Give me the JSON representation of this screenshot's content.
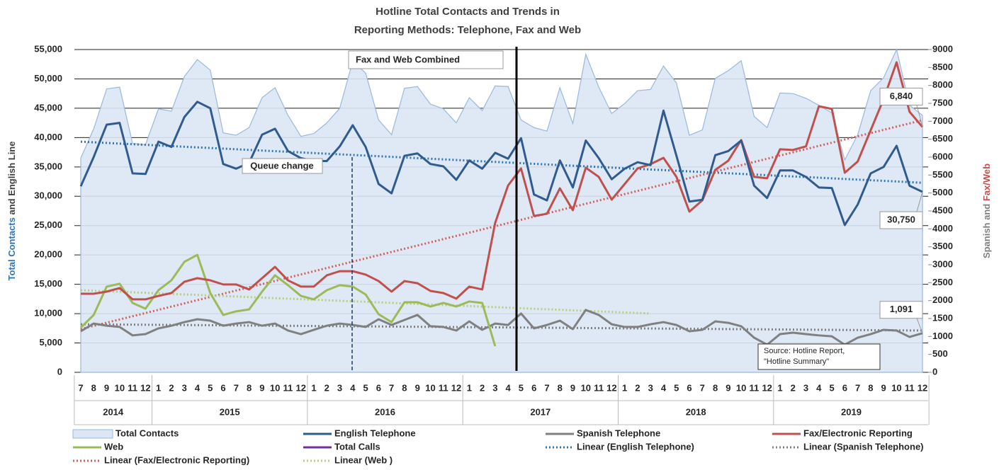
{
  "chart_data": {
    "type": "line",
    "title": [
      "Hotline Total Contacts and Trends in",
      "Reporting Methods: Telephone, Fax and Web"
    ],
    "ylabel": [
      "Total Contacts",
      " and English Line"
    ],
    "y2label": [
      "Spanish and ",
      "Fax/Web"
    ],
    "categories": [
      "7",
      "8",
      "9",
      "10",
      "11",
      "12",
      "1",
      "2",
      "3",
      "4",
      "5",
      "6",
      "7",
      "8",
      "9",
      "10",
      "11",
      "12",
      "1",
      "2",
      "3",
      "4",
      "5",
      "6",
      "7",
      "8",
      "9",
      "10",
      "11",
      "12",
      "1",
      "2",
      "3",
      "4",
      "5",
      "6",
      "7",
      "8",
      "9",
      "10",
      "11",
      "12",
      "1",
      "2",
      "3",
      "4",
      "5",
      "6",
      "7",
      "8",
      "9",
      "10",
      "11",
      "12",
      "1",
      "2",
      "3",
      "4",
      "5",
      "6",
      "7",
      "8",
      "9",
      "10",
      "11",
      "12"
    ],
    "year_groups": [
      {
        "label": "2014",
        "months": 6
      },
      {
        "label": "2015",
        "months": 12
      },
      {
        "label": "2016",
        "months": 12
      },
      {
        "label": "2017",
        "months": 12
      },
      {
        "label": "2018",
        "months": 12
      },
      {
        "label": "2019",
        "months": 12
      }
    ],
    "ylim": [
      0,
      55000
    ],
    "yticks": [
      0,
      {
        "value": 5000,
        "label": "5,000"
      },
      {
        "value": 10000,
        "label": "10,000"
      },
      {
        "value": 15000,
        "label": "15,000"
      },
      {
        "value": 20000,
        "label": "20,000"
      },
      {
        "value": 25000,
        "label": "25,000"
      },
      {
        "value": 30000,
        "label": "30,000"
      },
      {
        "value": 35000,
        "label": "35,000"
      },
      {
        "value": 40000,
        "label": "40,000"
      },
      {
        "value": 45000,
        "label": "45,000"
      },
      {
        "value": 50000,
        "label": "50,000"
      },
      {
        "value": 55000,
        "label": "55,000"
      }
    ],
    "y2lim": [
      0,
      9000
    ],
    "y2ticks": [
      0,
      500,
      1000,
      1500,
      2000,
      2500,
      3000,
      3500,
      4000,
      4500,
      5000,
      5500,
      6000,
      6500,
      7000,
      7500,
      8000,
      8500,
      9000
    ],
    "grid": true,
    "series": [
      {
        "name": "Total Contacts",
        "kind": "area",
        "color": "#dce6f4",
        "values": [
          36500,
          41500,
          48300,
          48600,
          39000,
          38800,
          44900,
          44500,
          50400,
          53300,
          51500,
          40800,
          40400,
          41700,
          46800,
          48500,
          43800,
          40200,
          40700,
          42500,
          45000,
          53000,
          51000,
          43000,
          40500,
          48400,
          48700,
          45700,
          44900,
          42500,
          46800,
          44600,
          48800,
          48700,
          43000,
          41700,
          41100,
          48500,
          42400,
          54200,
          48600,
          44100,
          45800,
          48000,
          48200,
          52200,
          49300,
          40400,
          41300,
          50100,
          51400,
          53100,
          43600,
          41700,
          47600,
          47500,
          46700,
          45500,
          44200,
          36200,
          40500,
          48000,
          50200,
          55000,
          45500,
          43800
        ]
      },
      {
        "name": "English Telephone",
        "kind": "line",
        "color": "#2f5b8e",
        "values": [
          31700,
          36700,
          42200,
          42500,
          33900,
          33800,
          39300,
          38400,
          43500,
          46100,
          45000,
          35500,
          34700,
          35700,
          40500,
          41500,
          37700,
          36500,
          36000,
          36000,
          38500,
          42100,
          38400,
          32100,
          30500,
          36900,
          37300,
          35500,
          35100,
          32800,
          36100,
          34700,
          37400,
          36400,
          39900,
          30300,
          29300,
          36100,
          31500,
          39500,
          36500,
          32900,
          34700,
          35800,
          35300,
          44600,
          36900,
          29100,
          29400,
          37000,
          37700,
          39500,
          31800,
          29700,
          34400,
          34400,
          33300,
          31500,
          31400,
          25100,
          28600,
          33900,
          35000,
          38600,
          31800,
          30750
        ],
        "value_labels": [
          null,
          null,
          null,
          null,
          null,
          null,
          null,
          null,
          null,
          null,
          null,
          null,
          null,
          null,
          null,
          null,
          null,
          null,
          null,
          null,
          null,
          null,
          null,
          null,
          null,
          null,
          null,
          null,
          null,
          null,
          null,
          null,
          null,
          null,
          null,
          null,
          null,
          null,
          null,
          null,
          null,
          null,
          null,
          null,
          null,
          null,
          null,
          null,
          null,
          null,
          null,
          null,
          null,
          null,
          null,
          null,
          null,
          null,
          null,
          null,
          null,
          null,
          null,
          null,
          null,
          "30,750"
        ]
      },
      {
        "name": "Spanish Telephone",
        "kind": "line",
        "axis": "y2",
        "color": "#808080",
        "values": [
          1145,
          1360,
          1300,
          1265,
          1030,
          1065,
          1225,
          1300,
          1400,
          1480,
          1440,
          1300,
          1360,
          1400,
          1300,
          1360,
          1165,
          1065,
          1185,
          1300,
          1360,
          1320,
          1265,
          1480,
          1320,
          1460,
          1600,
          1285,
          1265,
          1165,
          1420,
          1185,
          1360,
          1320,
          1640,
          1225,
          1320,
          1440,
          1205,
          1740,
          1600,
          1340,
          1265,
          1265,
          1340,
          1400,
          1320,
          1145,
          1185,
          1420,
          1380,
          1285,
          965,
          770,
          1065,
          1105,
          1065,
          1030,
          1005,
          770,
          965,
          1065,
          1185,
          1165,
          985,
          1091
        ],
        "value_labels": [
          null,
          null,
          null,
          null,
          null,
          null,
          null,
          null,
          null,
          null,
          null,
          null,
          null,
          null,
          null,
          null,
          null,
          null,
          null,
          null,
          null,
          null,
          null,
          null,
          null,
          null,
          null,
          null,
          null,
          null,
          null,
          null,
          null,
          null,
          null,
          null,
          null,
          null,
          null,
          null,
          null,
          null,
          null,
          null,
          null,
          null,
          null,
          null,
          null,
          null,
          null,
          null,
          null,
          null,
          null,
          null,
          null,
          null,
          null,
          null,
          null,
          null,
          null,
          null,
          null,
          "1,091"
        ]
      },
      {
        "name": "Fax/Electronic Reporting",
        "kind": "line",
        "axis": "y2",
        "color": "#c0504d",
        "values": [
          2190,
          2190,
          2250,
          2350,
          2035,
          2035,
          2130,
          2210,
          2525,
          2625,
          2565,
          2450,
          2450,
          2310,
          2625,
          2940,
          2565,
          2390,
          2390,
          2705,
          2820,
          2820,
          2725,
          2545,
          2250,
          2545,
          2485,
          2270,
          2210,
          2055,
          2390,
          2310,
          4165,
          5210,
          5685,
          4360,
          4420,
          5130,
          4520,
          5705,
          5450,
          4815,
          5250,
          5685,
          5805,
          5980,
          5450,
          4480,
          4795,
          5645,
          5900,
          6475,
          5450,
          5410,
          6220,
          6200,
          6300,
          7420,
          7345,
          5565,
          5880,
          6750,
          7620,
          8645,
          7265,
          6840
        ],
        "value_labels": [
          null,
          null,
          null,
          null,
          null,
          null,
          null,
          null,
          null,
          null,
          null,
          null,
          null,
          null,
          null,
          null,
          null,
          null,
          null,
          null,
          null,
          null,
          null,
          null,
          null,
          null,
          null,
          null,
          null,
          null,
          null,
          null,
          null,
          null,
          null,
          null,
          null,
          null,
          null,
          null,
          null,
          null,
          null,
          null,
          null,
          null,
          null,
          null,
          null,
          null,
          null,
          null,
          null,
          null,
          null,
          null,
          null,
          null,
          null,
          null,
          null,
          null,
          null,
          null,
          null,
          "6,840"
        ]
      },
      {
        "name": "Web",
        "kind": "line",
        "axis": "y2",
        "color": "#9bbb59",
        "values": [
          1245,
          1600,
          2390,
          2470,
          1935,
          1775,
          2290,
          2565,
          3080,
          3275,
          2210,
          1600,
          1700,
          1755,
          2250,
          2705,
          2430,
          2130,
          2035,
          2290,
          2430,
          2390,
          2170,
          1620,
          1400,
          1955,
          1955,
          1835,
          1935,
          1835,
          1975,
          1935,
          730,
          null,
          null,
          null,
          null,
          null,
          null,
          null,
          null,
          null,
          null,
          null,
          null,
          null,
          null,
          null,
          null,
          null,
          null,
          null,
          null,
          null,
          null,
          null,
          null,
          null,
          null,
          null,
          null,
          null,
          null,
          null,
          null,
          null
        ]
      },
      {
        "name": "Total Calls",
        "kind": "line",
        "color": "#7030a0",
        "values": [
          null,
          null,
          null,
          null,
          null,
          null,
          null,
          null,
          null,
          null,
          null,
          null,
          null,
          null,
          null,
          null,
          null,
          null,
          null,
          null,
          null,
          null,
          null,
          null,
          null,
          null,
          null,
          null,
          null,
          null,
          null,
          null,
          null,
          null,
          null,
          null,
          null,
          null,
          null,
          null,
          null,
          null,
          null,
          null,
          null,
          null,
          null,
          null,
          null,
          null,
          null,
          null,
          null,
          null,
          null,
          null,
          null,
          null,
          null,
          null,
          null,
          null,
          null,
          null,
          null,
          null
        ]
      },
      {
        "name": "Linear (English Telephone)",
        "kind": "trend",
        "color": "#2e75b6",
        "values": [
          39300,
          null,
          null,
          null,
          null,
          null,
          null,
          null,
          null,
          null,
          null,
          null,
          null,
          null,
          null,
          null,
          null,
          null,
          null,
          null,
          null,
          null,
          null,
          null,
          null,
          null,
          null,
          null,
          null,
          null,
          null,
          null,
          null,
          null,
          null,
          null,
          null,
          null,
          null,
          null,
          null,
          null,
          null,
          null,
          null,
          null,
          null,
          null,
          null,
          null,
          null,
          null,
          null,
          null,
          null,
          null,
          null,
          null,
          null,
          null,
          null,
          null,
          null,
          null,
          null,
          32300
        ]
      },
      {
        "name": "Linear (Spanish Telephone)",
        "kind": "trend",
        "axis": "y2",
        "color": "#808080",
        "values": [
          1340,
          null,
          null,
          null,
          null,
          null,
          null,
          null,
          null,
          null,
          null,
          null,
          null,
          null,
          null,
          null,
          null,
          null,
          null,
          null,
          null,
          null,
          null,
          null,
          null,
          null,
          null,
          null,
          null,
          null,
          null,
          null,
          null,
          null,
          null,
          null,
          null,
          null,
          null,
          null,
          null,
          null,
          null,
          null,
          null,
          null,
          null,
          null,
          null,
          null,
          null,
          null,
          null,
          null,
          null,
          null,
          null,
          null,
          null,
          null,
          null,
          null,
          null,
          null,
          null,
          1165
        ]
      },
      {
        "name": "Linear (Fax/Electronic Reporting)",
        "kind": "trend",
        "axis": "y2",
        "color": "#d0605c",
        "values": [
          1205,
          null,
          null,
          null,
          null,
          null,
          null,
          null,
          null,
          null,
          null,
          null,
          null,
          null,
          null,
          null,
          null,
          null,
          null,
          null,
          null,
          null,
          null,
          null,
          null,
          null,
          null,
          null,
          null,
          null,
          null,
          null,
          null,
          null,
          null,
          null,
          null,
          null,
          null,
          null,
          null,
          null,
          null,
          null,
          null,
          null,
          null,
          null,
          null,
          null,
          null,
          null,
          null,
          null,
          null,
          null,
          null,
          null,
          null,
          null,
          null,
          null,
          null,
          null,
          null,
          7030
        ]
      },
      {
        "name": "Linear (Web )",
        "kind": "trend",
        "axis": "y2",
        "color": "#b5cf7a",
        "values": [
          2290,
          null,
          null,
          null,
          null,
          null,
          null,
          null,
          null,
          null,
          null,
          null,
          null,
          null,
          null,
          null,
          null,
          null,
          null,
          null,
          null,
          null,
          null,
          null,
          null,
          null,
          null,
          null,
          null,
          null,
          null,
          null,
          null,
          null,
          null,
          null,
          null,
          null,
          null,
          null,
          null,
          null,
          null,
          null,
          1640,
          null,
          null,
          null,
          null,
          null,
          null,
          null,
          null,
          null,
          null,
          null,
          null,
          null,
          null,
          null,
          null,
          null,
          null,
          null,
          null,
          null
        ]
      }
    ],
    "annotations": {
      "queue": "Queue change",
      "combined": "Fax and Web Combined",
      "source": [
        "Source: Hotline Report,",
        "\"Hotline Summary\""
      ]
    }
  }
}
